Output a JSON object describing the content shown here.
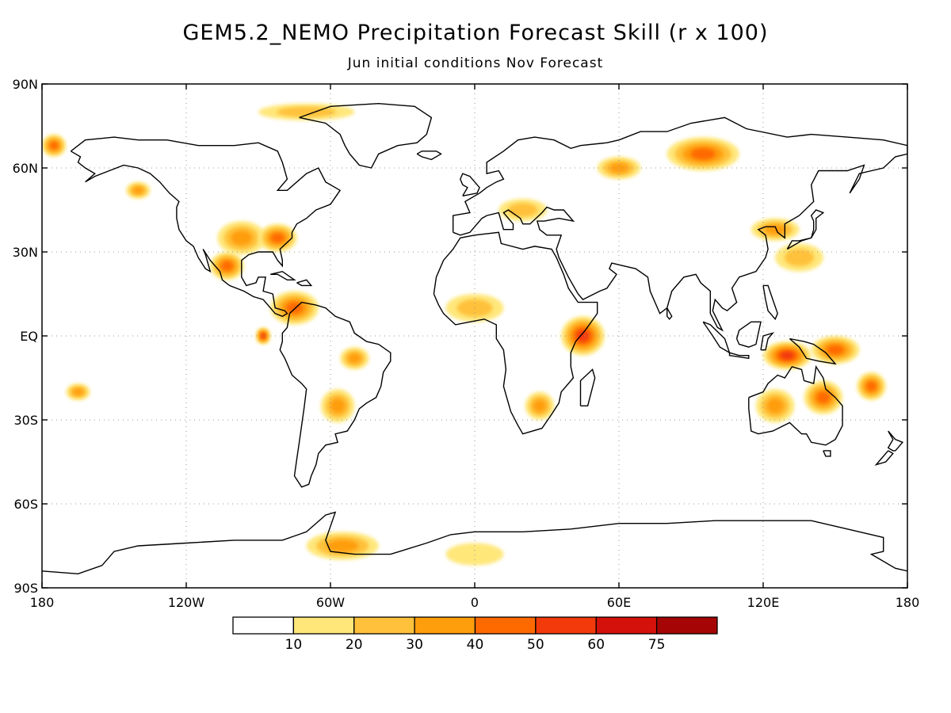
{
  "title": "GEM5.2_NEMO Precipitation Forecast Skill (r x 100)",
  "subtitle": "Jun initial conditions  Nov Forecast",
  "map": {
    "projection": "cylindrical equidistant",
    "lon_range": [
      -180,
      180
    ],
    "lat_range": [
      -90,
      90
    ],
    "grid": "on (dotted)",
    "x_ticks": [
      {
        "lon": -180,
        "label": "180"
      },
      {
        "lon": -120,
        "label": "120W"
      },
      {
        "lon": -60,
        "label": "60W"
      },
      {
        "lon": 0,
        "label": "0"
      },
      {
        "lon": 60,
        "label": "60E"
      },
      {
        "lon": 120,
        "label": "120E"
      },
      {
        "lon": 180,
        "label": "180"
      }
    ],
    "y_ticks": [
      {
        "lat": 90,
        "label": "90N"
      },
      {
        "lat": 60,
        "label": "60N"
      },
      {
        "lat": 30,
        "label": "30N"
      },
      {
        "lat": 0,
        "label": "EQ"
      },
      {
        "lat": -30,
        "label": "30S"
      },
      {
        "lat": -60,
        "label": "60S"
      },
      {
        "lat": -90,
        "label": "90S"
      }
    ],
    "colorbar": {
      "levels": [
        "10",
        "20",
        "30",
        "40",
        "50",
        "60",
        "75"
      ],
      "colors": [
        "#ffffff",
        "#ffe77a",
        "#ffc13b",
        "#ff9e0d",
        "#ff6a00",
        "#f23a0a",
        "#d4120b",
        "#a50505"
      ]
    },
    "skill_regions": [
      {
        "lon": -97,
        "lat": 35,
        "rx": 10,
        "ry": 6,
        "level": 3
      },
      {
        "lon": -82,
        "lat": 35,
        "rx": 8,
        "ry": 5,
        "level": 4
      },
      {
        "lon": -103,
        "lat": 25,
        "rx": 7,
        "ry": 5,
        "level": 4
      },
      {
        "lon": -75,
        "lat": 10,
        "rx": 10,
        "ry": 6,
        "level": 4
      },
      {
        "lon": -50,
        "lat": -8,
        "rx": 6,
        "ry": 4,
        "level": 3
      },
      {
        "lon": -57,
        "lat": -25,
        "rx": 7,
        "ry": 6,
        "level": 3
      },
      {
        "lon": -88,
        "lat": 0,
        "rx": 3,
        "ry": 3,
        "level": 5
      },
      {
        "lon": -140,
        "lat": 52,
        "rx": 5,
        "ry": 3,
        "level": 3
      },
      {
        "lon": -175,
        "lat": 68,
        "rx": 5,
        "ry": 4,
        "level": 4
      },
      {
        "lon": 45,
        "lat": 0,
        "rx": 9,
        "ry": 7,
        "level": 5
      },
      {
        "lon": 27,
        "lat": -25,
        "rx": 6,
        "ry": 5,
        "level": 3
      },
      {
        "lon": 95,
        "lat": 65,
        "rx": 15,
        "ry": 6,
        "level": 4
      },
      {
        "lon": 60,
        "lat": 60,
        "rx": 9,
        "ry": 4,
        "level": 3
      },
      {
        "lon": 125,
        "lat": 38,
        "rx": 10,
        "ry": 4,
        "level": 3
      },
      {
        "lon": 135,
        "lat": 28,
        "rx": 10,
        "ry": 5,
        "level": 2
      },
      {
        "lon": 130,
        "lat": -7,
        "rx": 10,
        "ry": 5,
        "level": 5
      },
      {
        "lon": 150,
        "lat": -5,
        "rx": 10,
        "ry": 5,
        "level": 4
      },
      {
        "lon": 145,
        "lat": -22,
        "rx": 8,
        "ry": 6,
        "level": 4
      },
      {
        "lon": 125,
        "lat": -25,
        "rx": 8,
        "ry": 6,
        "level": 3
      },
      {
        "lon": 165,
        "lat": -18,
        "rx": 6,
        "ry": 5,
        "level": 4
      },
      {
        "lon": -165,
        "lat": -20,
        "rx": 5,
        "ry": 3,
        "level": 3
      },
      {
        "lon": -55,
        "lat": -75,
        "rx": 15,
        "ry": 5,
        "level": 3
      },
      {
        "lon": 0,
        "lat": -78,
        "rx": 12,
        "ry": 4,
        "level": 1
      },
      {
        "lon": -70,
        "lat": 80,
        "rx": 20,
        "ry": 3,
        "level": 2
      },
      {
        "lon": 20,
        "lat": 45,
        "rx": 10,
        "ry": 4,
        "level": 2
      },
      {
        "lon": 0,
        "lat": 10,
        "rx": 12,
        "ry": 5,
        "level": 2
      }
    ]
  }
}
